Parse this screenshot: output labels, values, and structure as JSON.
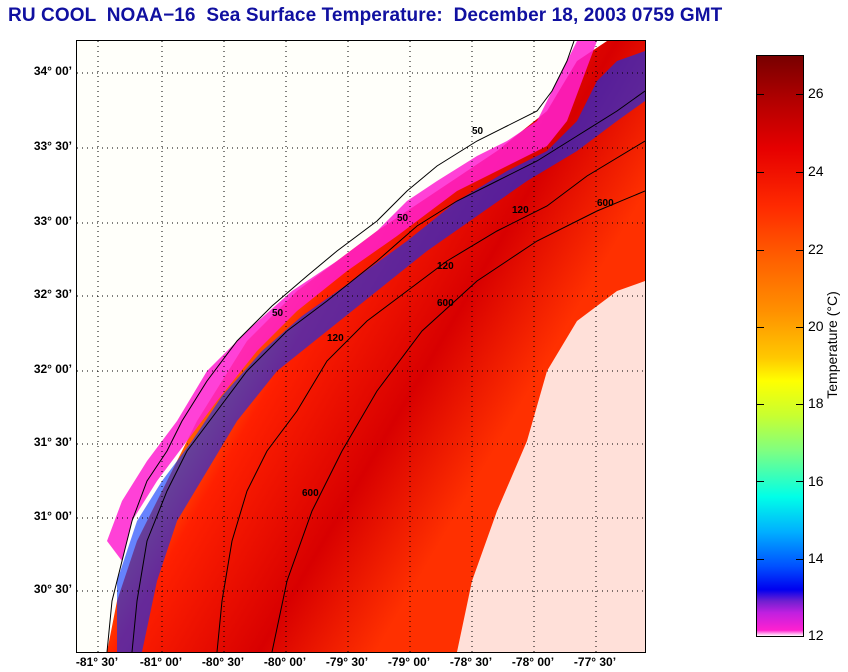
{
  "title": "RU COOL  NOAA−16  Sea Surface Temperature:  December 18, 2003 0759 GMT",
  "map": {
    "lat_labels": [
      "34° 00’",
      "33° 30’",
      "33° 00’",
      "32° 30’",
      "32° 00’",
      "31° 30’",
      "31° 00’",
      "30° 30’"
    ],
    "lon_labels": [
      "-81° 30’",
      "-81° 00’",
      "-80° 30’",
      "-80° 00’",
      "-79° 30’",
      "-79° 00’",
      "-78° 30’",
      "-78° 00’",
      "-77° 30’"
    ],
    "isobath_labels": [
      "50",
      "120",
      "600"
    ],
    "land_color": "#fffffa",
    "coast_color": "#000000"
  },
  "colorbar": {
    "label": "Temperature (°C)",
    "ticks": [
      "26",
      "24",
      "22",
      "20",
      "18",
      "16",
      "14",
      "12"
    ],
    "range": [
      12,
      27
    ]
  }
}
